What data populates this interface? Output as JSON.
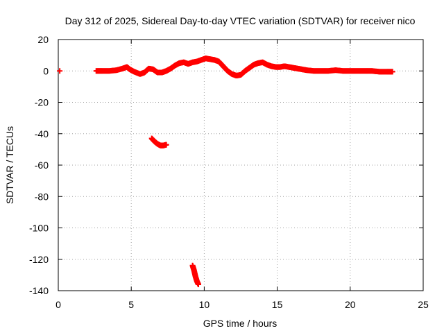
{
  "chart_data": {
    "type": "scatter",
    "title": "Day 312 of 2025, Sidereal Day-to-day VTEC variation (SDTVAR) for receiver nico",
    "xlabel": "GPS time / hours",
    "ylabel": "SDTVAR / TECUs",
    "xlim": [
      0,
      25
    ],
    "ylim": [
      -140,
      20
    ],
    "xticks": [
      0,
      5,
      10,
      15,
      20,
      25
    ],
    "yticks": [
      20,
      0,
      -20,
      -40,
      -60,
      -80,
      -100,
      -120,
      -140
    ],
    "grid": true,
    "marker": "plus",
    "series": [
      {
        "name": "SDTVAR",
        "color": "#ff0000",
        "segments": [
          {
            "x": [
              0.1
            ],
            "y": [
              0
            ]
          },
          {
            "x": [
              2.6,
              3.0,
              3.5,
              4.0,
              4.4,
              4.7,
              4.9,
              5.2,
              5.6,
              5.9,
              6.2,
              6.5,
              6.8,
              7.1,
              7.4,
              7.7,
              8.0,
              8.3,
              8.6,
              8.9,
              9.2,
              9.5,
              9.8,
              10.1,
              10.4,
              10.7,
              11.0,
              11.3,
              11.6,
              11.9,
              12.2,
              12.5,
              12.8,
              13.1,
              13.4,
              13.7,
              14.0,
              14.3,
              14.6,
              14.9,
              15.2,
              15.5,
              15.8,
              16.1,
              16.4,
              16.7,
              17.0,
              17.5,
              18.0,
              18.5,
              19.0,
              19.5,
              20.0,
              20.5,
              21.0,
              21.5,
              22.0,
              22.5,
              22.9
            ],
            "y": [
              0,
              0,
              0,
              0.5,
              1.5,
              2.5,
              1,
              -0.5,
              -2,
              -1,
              1.5,
              1,
              -1,
              -1,
              0,
              1.5,
              3.5,
              5,
              5.5,
              4.5,
              5.5,
              6,
              7,
              8,
              7.5,
              7,
              6,
              3,
              0,
              -2,
              -3,
              -2.5,
              0,
              2,
              4,
              5,
              5.5,
              4,
              3,
              2.5,
              2.5,
              3,
              2.5,
              2,
              1.5,
              1,
              0.5,
              0,
              0,
              0,
              0.5,
              0,
              0,
              0,
              0,
              0,
              -0.5,
              -0.5,
              -0.5
            ]
          },
          {
            "x": [
              6.4,
              6.6,
              6.8,
              7.0,
              7.2,
              7.4
            ],
            "y": [
              -43,
              -45,
              -46.5,
              -47.5,
              -47.5,
              -47
            ]
          },
          {
            "x": [
              9.2,
              9.3,
              9.4,
              9.5,
              9.6
            ],
            "y": [
              -124,
              -127,
              -131,
              -134,
              -136
            ]
          }
        ]
      }
    ]
  }
}
